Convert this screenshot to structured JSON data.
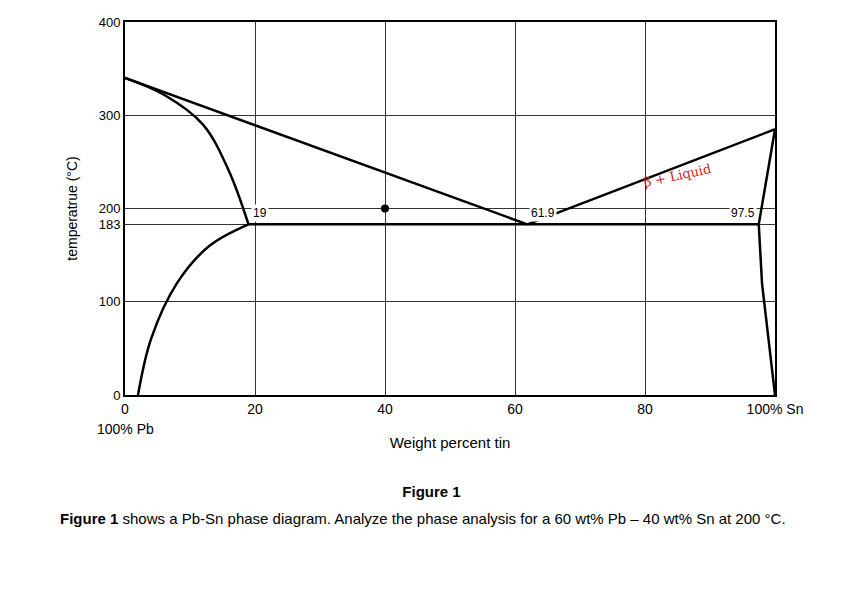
{
  "chart_data": {
    "type": "line",
    "x_label": "Weight percent tin",
    "y_label": "temperatrue (°C)",
    "xlim": [
      0,
      100
    ],
    "ylim": [
      0,
      400
    ],
    "xticks": [
      0,
      20,
      40,
      60,
      80,
      {
        "value": 100,
        "label": "100% Sn"
      }
    ],
    "yticks": [
      0,
      100,
      183,
      200,
      300,
      400
    ],
    "grid": true,
    "series": [
      {
        "x": [
          0,
          61.9
        ],
        "values": [
          340,
          183
        ],
        "color": "#000000",
        "line_style": "solid"
      },
      {
        "x": [
          0,
          6,
          12,
          16,
          19
        ],
        "values": [
          340,
          322,
          290,
          240,
          183
        ],
        "color": "#000000",
        "line_style": "curved"
      },
      {
        "x": [
          19,
          13,
          8,
          4,
          2
        ],
        "values": [
          183,
          160,
          120,
          60,
          0
        ],
        "color": "#000000",
        "line_style": "curved"
      },
      {
        "x": [
          19,
          97.5
        ],
        "values": [
          183,
          183
        ],
        "color": "#000000",
        "line_style": "solid"
      },
      {
        "x": [
          61.9,
          100
        ],
        "values": [
          183,
          285
        ],
        "color": "#000000",
        "line_style": "solid"
      },
      {
        "x": [
          97.5,
          100
        ],
        "values": [
          183,
          285
        ],
        "color": "#000000",
        "line_style": "solid"
      },
      {
        "x": [
          97.5,
          98,
          100
        ],
        "values": [
          183,
          120,
          0
        ],
        "color": "#000000",
        "line_style": "solid"
      },
      {
        "x": [
          40
        ],
        "values": [
          200
        ],
        "color": "#000000",
        "type": "scatter",
        "marker": "circle"
      }
    ],
    "annotations": [
      {
        "text": "19",
        "x": 19,
        "y": 183,
        "color": "#000000"
      },
      {
        "text": "61.9",
        "x": 61.9,
        "y": 183,
        "color": "#000000"
      },
      {
        "text": "97.5",
        "x": 97.5,
        "y": 183,
        "color": "#000000"
      },
      {
        "text": "β + Liquid",
        "x": 85,
        "y": 215,
        "color": "#cc2222"
      }
    ],
    "axis_notes": [
      {
        "text": "100% Pb",
        "x": 0
      }
    ]
  },
  "caption": {
    "heading": "Figure 1",
    "lead": "Figure 1",
    "text": " shows a Pb-Sn phase diagram. Analyze the phase analysis for a 60 wt% Pb – 40 wt% Sn at 200 °C."
  }
}
